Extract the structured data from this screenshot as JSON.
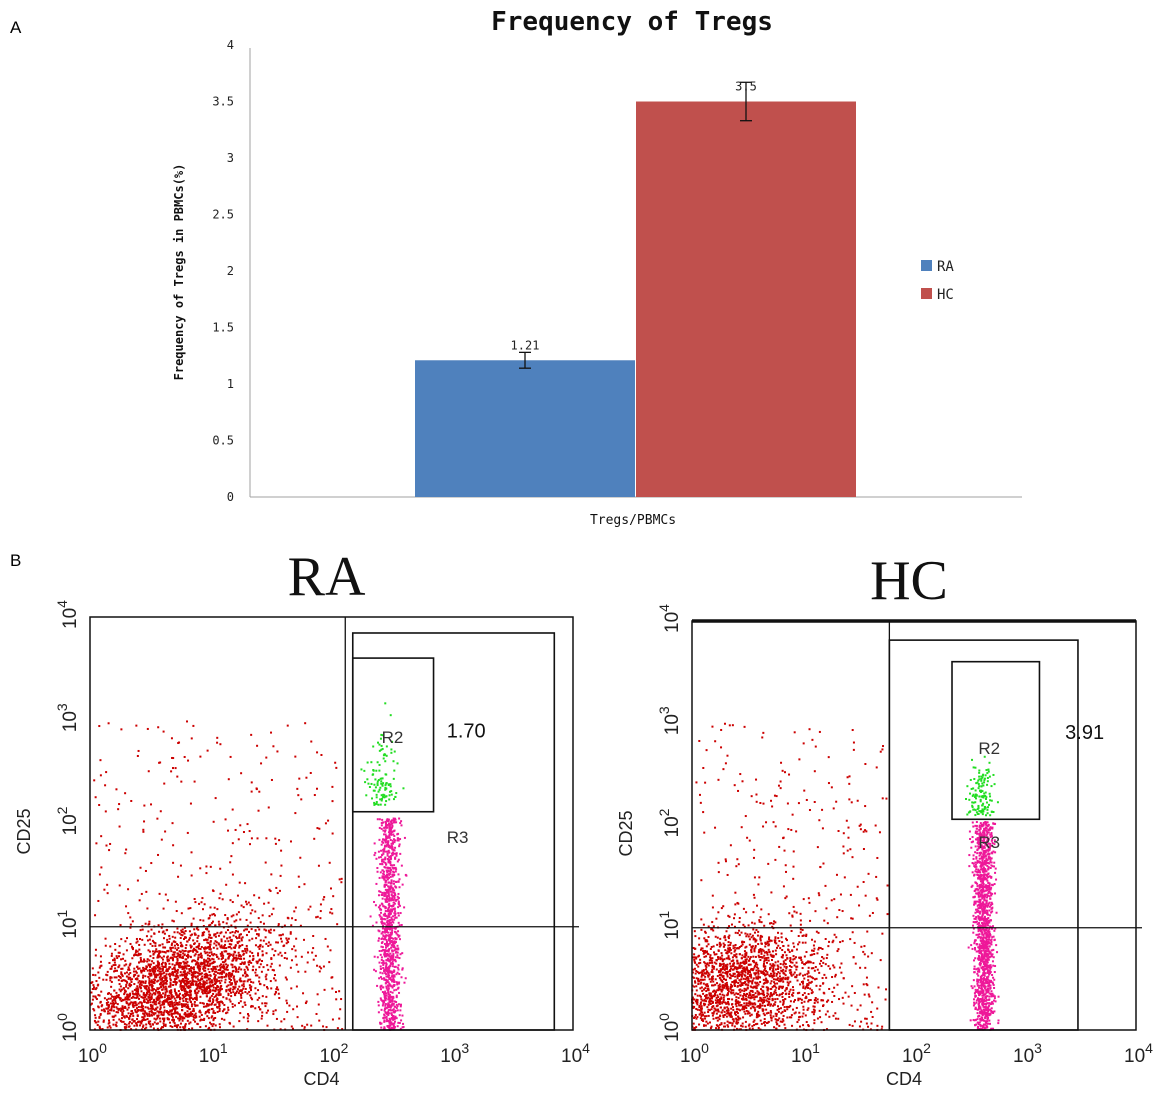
{
  "panels": {
    "a_letter": "A",
    "b_letter": "B"
  },
  "chart_data": [
    {
      "type": "bar",
      "title": "Frequency of Tregs",
      "xlabel": "Tregs/PBMCs",
      "ylabel": "Frequency of Tregs in PBMCs(%)",
      "ylim": [
        0,
        4
      ],
      "yticks": [
        0,
        0.5,
        1,
        1.5,
        2,
        2.5,
        3,
        3.5,
        4
      ],
      "yticklabels": [
        "0",
        "0.5",
        "1",
        "1.5",
        "2",
        "2.5",
        "3",
        "3.5",
        "4"
      ],
      "categories": [
        "Tregs/PBMCs"
      ],
      "series": [
        {
          "name": "RA",
          "values": [
            1.21
          ],
          "error": [
            0.07
          ],
          "label": "1.21",
          "color": "#4f81bd"
        },
        {
          "name": "HC",
          "values": [
            3.5
          ],
          "error": [
            0.17
          ],
          "label": "3.5",
          "color": "#c0504d"
        }
      ],
      "legend": "right",
      "grid": false
    },
    {
      "type": "scatter",
      "title": "RA",
      "xlabel": "CD4",
      "ylabel": "CD25",
      "xscale": "log",
      "yscale": "log",
      "xlim": [
        1,
        10000
      ],
      "ylim": [
        1,
        10000
      ],
      "ticks": [
        {
          "base": "10",
          "exp": "0"
        },
        {
          "base": "10",
          "exp": "1"
        },
        {
          "base": "10",
          "exp": "2"
        },
        {
          "base": "10",
          "exp": "3"
        },
        {
          "base": "10",
          "exp": "4"
        }
      ],
      "gates": [
        {
          "name": "R2",
          "label": "R2",
          "x": [
            150,
            700
          ],
          "y": [
            130,
            4000
          ]
        },
        {
          "name": "R3",
          "label": "R3",
          "x": [
            150,
            7000
          ],
          "y": [
            1,
            7000
          ]
        }
      ],
      "quadrant": {
        "x": 130,
        "y": 10
      },
      "percent_label": "1.70",
      "percent_value": 1.7,
      "colors": {
        "negative": "#cc0000",
        "r3": "#ee1899",
        "r2": "#22dd22"
      }
    },
    {
      "type": "scatter",
      "title": "HC",
      "xlabel": "CD4",
      "ylabel": "CD25",
      "xscale": "log",
      "yscale": "log",
      "xlim": [
        1,
        10000
      ],
      "ylim": [
        1,
        10000
      ],
      "ticks": [
        {
          "base": "10",
          "exp": "0"
        },
        {
          "base": "10",
          "exp": "1"
        },
        {
          "base": "10",
          "exp": "2"
        },
        {
          "base": "10",
          "exp": "3"
        },
        {
          "base": "10",
          "exp": "4"
        }
      ],
      "gates": [
        {
          "name": "R2",
          "label": "R2",
          "x": [
            220,
            1350
          ],
          "y": [
            115,
            4000
          ]
        },
        {
          "name": "R3",
          "label": "R3",
          "x": [
            60,
            3000
          ],
          "y": [
            1,
            6500
          ]
        }
      ],
      "quadrant": {
        "x": 60,
        "y": 10
      },
      "percent_label": "3.91",
      "percent_value": 3.91,
      "colors": {
        "negative": "#cc0000",
        "r3": "#ee1899",
        "r2": "#22dd22"
      }
    }
  ]
}
